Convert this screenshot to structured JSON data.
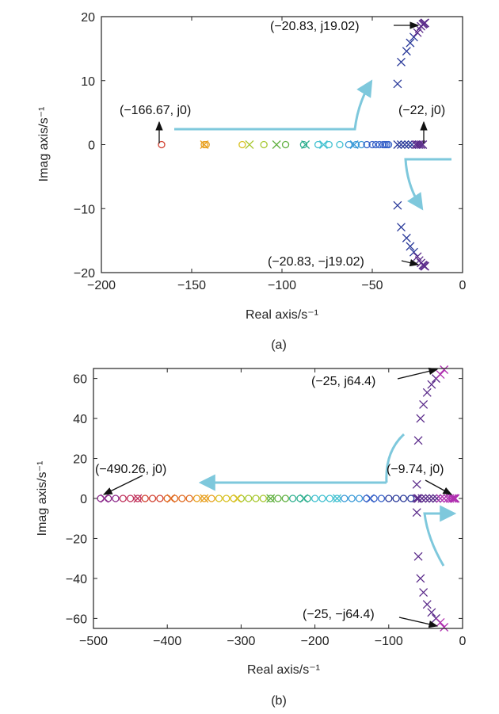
{
  "chart_data": [
    {
      "type": "scatter",
      "panel_label": "(a)",
      "xlabel": "Real axis/s⁻¹",
      "ylabel": "Imag axis/s⁻¹",
      "xlim": [
        -200,
        0
      ],
      "ylim": [
        -20,
        20
      ],
      "xticks": [
        -200,
        -150,
        -100,
        -50,
        0
      ],
      "yticks": [
        -20,
        -10,
        0,
        10,
        20
      ],
      "grid": false,
      "zeros": {
        "x": [
          -166.67,
          -143,
          -142,
          -122,
          -110,
          -98,
          -88,
          -80,
          -74,
          -68,
          -63,
          -59,
          -56,
          -53,
          -50,
          -48,
          -46,
          -44,
          -43,
          -42,
          -41
        ],
        "y": [
          0,
          0,
          0,
          0,
          0,
          0,
          0,
          0,
          0,
          0,
          0,
          0,
          0,
          0,
          0,
          0,
          0,
          0,
          0,
          0,
          0
        ]
      },
      "poles": {
        "x": [
          -143,
          -118,
          -103,
          -87,
          -77,
          -60,
          -36,
          -34,
          -32,
          -30,
          -28,
          -26,
          -25,
          -24,
          -23,
          -22,
          -36,
          -34,
          -31,
          -29,
          -27,
          -25,
          -24,
          -23,
          -22,
          -21.5,
          -21,
          -20.9,
          -20.83,
          -36,
          -34,
          -31,
          -29,
          -27,
          -25,
          -24,
          -23,
          -22,
          -21.5,
          -21,
          -20.9,
          -20.83
        ],
        "y": [
          0,
          0,
          0,
          0,
          0,
          0,
          0,
          0,
          0,
          0,
          0,
          0,
          0,
          0,
          0,
          0,
          9.5,
          12.9,
          14.6,
          15.9,
          16.8,
          17.5,
          18.1,
          18.5,
          18.8,
          18.9,
          19.0,
          19.0,
          19.02,
          -9.5,
          -12.9,
          -14.6,
          -15.9,
          -16.8,
          -17.5,
          -18.1,
          -18.5,
          -18.8,
          -18.9,
          -19.0,
          -19.0,
          -19.02
        ]
      },
      "annotations": [
        {
          "text": "(−166.67, j0)",
          "x": -166.67,
          "y": 0
        },
        {
          "text": "(−22, j0)",
          "x": -22,
          "y": 0
        },
        {
          "text": "(−20.83, j19.02)",
          "x": -20.83,
          "y": 19.02
        },
        {
          "text": "(−20.83, −j19.02)",
          "x": -20.83,
          "y": -19.02
        }
      ]
    },
    {
      "type": "scatter",
      "panel_label": "(b)",
      "xlabel": "Real axis/s⁻¹",
      "ylabel": "Imag axis/s⁻¹",
      "xlim": [
        -500,
        0
      ],
      "ylim": [
        -65,
        65
      ],
      "xticks": [
        -500,
        -400,
        -300,
        -200,
        -100,
        0
      ],
      "yticks": [
        -60,
        -40,
        -20,
        0,
        20,
        40,
        60
      ],
      "grid": false,
      "zeros": {
        "x": [
          -490.26,
          -480,
          -470,
          -460,
          -450,
          -440,
          -430,
          -420,
          -410,
          -400,
          -390,
          -380,
          -370,
          -360,
          -350,
          -340,
          -330,
          -320,
          -310,
          -300,
          -290,
          -280,
          -270,
          -260,
          -250,
          -240,
          -230,
          -220,
          -210,
          -200,
          -190,
          -180,
          -170,
          -160,
          -150,
          -140,
          -130,
          -120,
          -110,
          -100,
          -90,
          -80,
          -70
        ],
        "y": [
          0,
          0,
          0,
          0,
          0,
          0,
          0,
          0,
          0,
          0,
          0,
          0,
          0,
          0,
          0,
          0,
          0,
          0,
          0,
          0,
          0,
          0,
          0,
          0,
          0,
          0,
          0,
          0,
          0,
          0,
          0,
          0,
          0,
          0,
          0,
          0,
          0,
          0,
          0,
          0,
          0,
          0,
          0
        ]
      },
      "poles": {
        "x": [
          -485,
          -440,
          -395,
          -350,
          -305,
          -260,
          -215,
          -170,
          -125,
          -60,
          -55,
          -50,
          -45,
          -40,
          -35,
          -30,
          -25,
          -20,
          -17,
          -14,
          -12,
          -10.5,
          -9.74,
          -62,
          -60,
          -57,
          -53,
          -48,
          -42,
          -36,
          -30,
          -25,
          -62,
          -60,
          -57,
          -53,
          -48,
          -42,
          -36,
          -30,
          -25,
          -62,
          -60
        ],
        "y": [
          0,
          0,
          0,
          0,
          0,
          0,
          0,
          0,
          0,
          0,
          0,
          0,
          0,
          0,
          0,
          0,
          0,
          0,
          0,
          0,
          0,
          0,
          0,
          7,
          29,
          40,
          47,
          53,
          57,
          60,
          62,
          64.4,
          -7,
          -29,
          -40,
          -47,
          -53,
          -57,
          -60,
          -62,
          -64.4,
          0,
          0
        ]
      },
      "annotations": [
        {
          "text": "(−490.26, j0)",
          "x": -490.26,
          "y": 0
        },
        {
          "text": "(−9.74, j0)",
          "x": -9.74,
          "y": 0
        },
        {
          "text": "(−25, j64.4)",
          "x": -25,
          "y": 64.4
        },
        {
          "text": "(−25, −j64.4)",
          "x": -25,
          "y": -64.4
        }
      ]
    }
  ],
  "colors": {
    "palette": [
      "#8b2a8b",
      "#c0305a",
      "#d24030",
      "#e06a20",
      "#e8a020",
      "#d8c020",
      "#a8c830",
      "#60b040",
      "#30b090",
      "#40c0d0",
      "#3a9ad8",
      "#3560c8",
      "#2a3a9a",
      "#5a2a8a",
      "#b030b0"
    ],
    "guide_arrow": "#7ec8dc",
    "axis": "#222222"
  }
}
